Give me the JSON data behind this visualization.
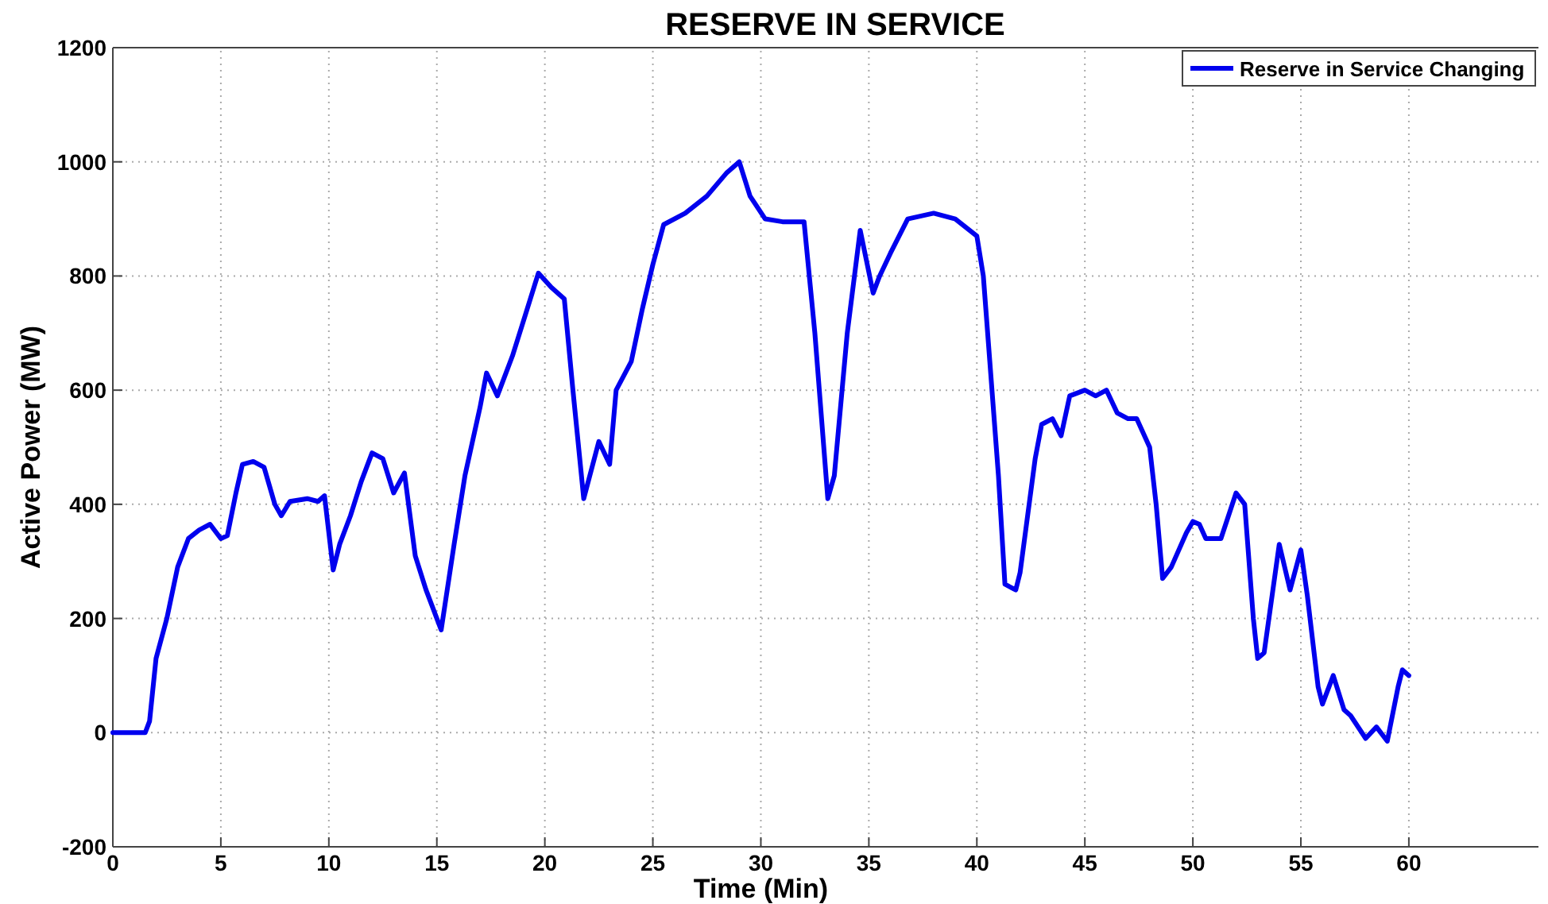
{
  "chart_data": {
    "type": "line",
    "title": "RESERVE IN SERVICE",
    "xlabel": "Time (Min)",
    "ylabel": "Active Power (MW)",
    "xlim": [
      0,
      66
    ],
    "xticks": [
      0,
      5,
      10,
      15,
      20,
      25,
      30,
      35,
      40,
      45,
      50,
      55,
      60
    ],
    "ylim": [
      -200,
      1200
    ],
    "yticks": [
      -200,
      0,
      200,
      400,
      600,
      800,
      1000,
      1200
    ],
    "grid": true,
    "legend": "top right",
    "line_style": "solid",
    "marker": "none",
    "series": [
      {
        "name": "Reserve in Service Changing",
        "color": "#0000ee",
        "x": [
          0,
          1.5,
          1.7,
          2,
          2.5,
          3,
          3.5,
          4,
          4.5,
          5,
          5.3,
          5.7,
          6,
          6.5,
          7,
          7.5,
          7.8,
          8.2,
          9,
          9.5,
          9.8,
          10.2,
          10.5,
          11,
          11.5,
          12,
          12.5,
          13,
          13.5,
          14,
          14.5,
          15,
          15.2,
          15.8,
          16.3,
          17,
          17.3,
          17.8,
          18.5,
          19,
          19.7,
          20.3,
          20.9,
          21.3,
          21.8,
          22.5,
          23,
          23.3,
          24,
          24.5,
          25,
          25.5,
          26.5,
          27.5,
          28.4,
          29,
          29.5,
          30.2,
          31,
          32,
          32.5,
          33.1,
          33.4,
          34,
          34.6,
          35.2,
          35.5,
          36,
          36.8,
          38,
          39,
          40,
          40.3,
          41,
          41.3,
          41.8,
          42,
          42.7,
          43,
          43.5,
          43.9,
          44.3,
          45,
          45.5,
          46,
          46.5,
          47,
          47.4,
          48,
          48.3,
          48.6,
          49,
          49.7,
          50,
          50.3,
          50.6,
          51.3,
          52,
          52.4,
          52.8,
          53,
          53.3,
          54,
          54.5,
          55,
          55.3,
          55.8,
          56,
          56.5,
          57,
          57.3,
          58,
          58.5,
          59,
          59.5,
          59.7,
          60
        ],
        "values": [
          0,
          0,
          20,
          130,
          200,
          290,
          340,
          355,
          365,
          340,
          345,
          420,
          470,
          475,
          465,
          400,
          380,
          405,
          410,
          405,
          415,
          285,
          330,
          380,
          440,
          490,
          480,
          420,
          455,
          310,
          250,
          200,
          180,
          330,
          450,
          570,
          630,
          590,
          660,
          720,
          805,
          780,
          760,
          600,
          410,
          510,
          470,
          600,
          650,
          740,
          820,
          890,
          910,
          940,
          980,
          1000,
          940,
          900,
          895,
          895,
          700,
          410,
          450,
          700,
          880,
          770,
          800,
          840,
          900,
          910,
          900,
          870,
          800,
          450,
          260,
          250,
          280,
          480,
          540,
          550,
          520,
          590,
          600,
          590,
          600,
          560,
          550,
          550,
          500,
          400,
          270,
          290,
          350,
          370,
          365,
          340,
          340,
          420,
          400,
          200,
          130,
          140,
          330,
          250,
          320,
          240,
          80,
          50,
          100,
          40,
          30,
          -10,
          10,
          -15,
          80,
          110,
          100
        ]
      }
    ]
  }
}
